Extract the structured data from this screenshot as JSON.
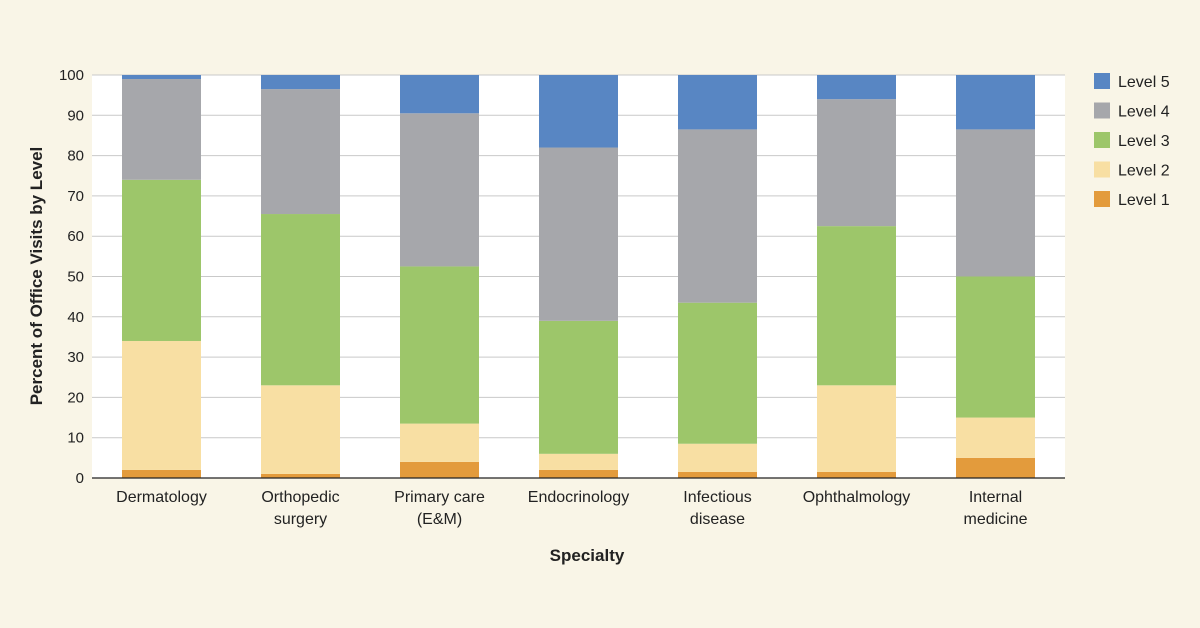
{
  "chart_data": {
    "type": "bar",
    "stacked": true,
    "xlabel": "Specialty",
    "ylabel": "Percent of Office Visits by Level",
    "ylim": [
      0,
      100
    ],
    "yticks": [
      0,
      10,
      20,
      30,
      40,
      50,
      60,
      70,
      80,
      90,
      100
    ],
    "grid": true,
    "legend_position": "right",
    "categories": [
      [
        "Dermatology"
      ],
      [
        "Orthopedic",
        "surgery"
      ],
      [
        "Primary care",
        "(E&M)"
      ],
      [
        "Endocrinology"
      ],
      [
        "Infectious",
        "disease"
      ],
      [
        "Ophthalmology"
      ],
      [
        "Internal",
        "medicine"
      ]
    ],
    "series": [
      {
        "name": "Level 1",
        "color": "#e39b3c",
        "values": [
          2,
          1,
          4,
          2,
          1.5,
          1.5,
          5
        ]
      },
      {
        "name": "Level 2",
        "color": "#f8dfa3",
        "values": [
          32,
          22,
          9.5,
          4,
          7,
          21.5,
          10
        ]
      },
      {
        "name": "Level 3",
        "color": "#9dc66a",
        "values": [
          40,
          42.5,
          39,
          33,
          35,
          39.5,
          35
        ]
      },
      {
        "name": "Level 4",
        "color": "#a6a7ab",
        "values": [
          25,
          31,
          38,
          43,
          43,
          31.5,
          36.5
        ]
      },
      {
        "name": "Level 5",
        "color": "#5886c3",
        "values": [
          1,
          3.5,
          9.5,
          18,
          13.5,
          6,
          13.5
        ]
      }
    ],
    "legend_order": [
      "Level 5",
      "Level 4",
      "Level 3",
      "Level 2",
      "Level 1"
    ]
  }
}
